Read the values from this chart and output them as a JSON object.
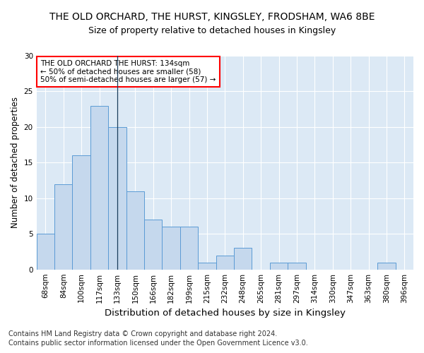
{
  "title": "THE OLD ORCHARD, THE HURST, KINGSLEY, FRODSHAM, WA6 8BE",
  "subtitle": "Size of property relative to detached houses in Kingsley",
  "xlabel": "Distribution of detached houses by size in Kingsley",
  "ylabel": "Number of detached properties",
  "footnote1": "Contains HM Land Registry data © Crown copyright and database right 2024.",
  "footnote2": "Contains public sector information licensed under the Open Government Licence v3.0.",
  "annotation_title": "THE OLD ORCHARD THE HURST: 134sqm",
  "annotation_line2": "← 50% of detached houses are smaller (58)",
  "annotation_line3": "50% of semi-detached houses are larger (57) →",
  "bar_labels": [
    "68sqm",
    "84sqm",
    "100sqm",
    "117sqm",
    "133sqm",
    "150sqm",
    "166sqm",
    "182sqm",
    "199sqm",
    "215sqm",
    "232sqm",
    "248sqm",
    "265sqm",
    "281sqm",
    "297sqm",
    "314sqm",
    "330sqm",
    "347sqm",
    "363sqm",
    "380sqm",
    "396sqm"
  ],
  "bar_values": [
    5,
    12,
    16,
    23,
    20,
    11,
    7,
    6,
    6,
    1,
    2,
    3,
    0,
    1,
    1,
    0,
    0,
    0,
    0,
    1,
    0
  ],
  "bar_color": "#c5d8ed",
  "bar_edge_color": "#5b9bd5",
  "marker_index": 4,
  "marker_color": "#1a3d5c",
  "ylim": [
    0,
    30
  ],
  "yticks": [
    0,
    5,
    10,
    15,
    20,
    25,
    30
  ],
  "background_color": "#dce9f5",
  "grid_color": "#ffffff",
  "title_fontsize": 10,
  "subtitle_fontsize": 9,
  "xlabel_fontsize": 9.5,
  "ylabel_fontsize": 8.5,
  "tick_fontsize": 7.5,
  "annotation_fontsize": 7.5,
  "footnote_fontsize": 7
}
